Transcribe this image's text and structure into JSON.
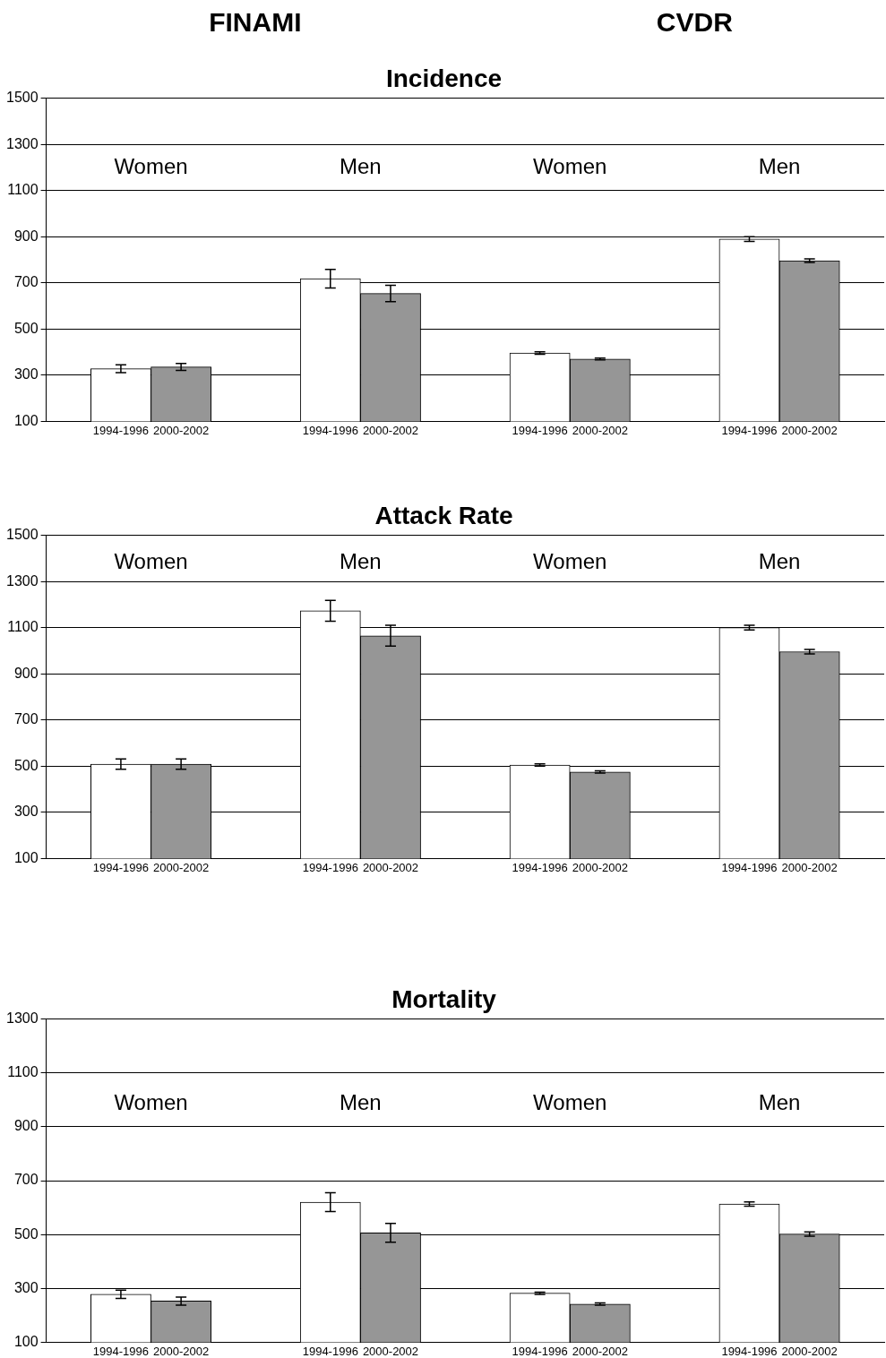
{
  "chart_data": [
    {
      "type": "bar",
      "title": "Incidence",
      "categories": [
        "1994-1996",
        "2000-2002",
        "1994-1996",
        "2000-2002",
        "1994-1996",
        "2000-2002",
        "1994-1996",
        "2000-2002"
      ],
      "values": [
        328,
        336,
        718,
        654,
        396,
        370,
        890,
        796
      ],
      "errors": [
        17,
        15,
        40,
        35,
        5,
        4,
        10,
        8
      ],
      "colors": [
        "#ffffff",
        "#969696",
        "#ffffff",
        "#969696",
        "#ffffff",
        "#969696",
        "#ffffff",
        "#969696"
      ],
      "ylim": [
        100,
        1500
      ],
      "yticks": [
        100,
        300,
        500,
        700,
        900,
        1100,
        1300,
        1500
      ],
      "grid": "y",
      "legend": false,
      "annotations": [
        "FINAMI",
        "CVDR",
        "Women",
        "Men",
        "Women",
        "Men"
      ]
    },
    {
      "type": "bar",
      "title": "Attack Rate",
      "categories": [
        "1994-1996",
        "2000-2002",
        "1994-1996",
        "2000-2002",
        "1994-1996",
        "2000-2002",
        "1994-1996",
        "2000-2002"
      ],
      "values": [
        509,
        509,
        1173,
        1065,
        505,
        475,
        1100,
        996
      ],
      "errors": [
        22,
        22,
        45,
        45,
        5,
        5,
        10,
        10
      ],
      "colors": [
        "#ffffff",
        "#969696",
        "#ffffff",
        "#969696",
        "#ffffff",
        "#969696",
        "#ffffff",
        "#969696"
      ],
      "ylim": [
        100,
        1500
      ],
      "yticks": [
        100,
        300,
        500,
        700,
        900,
        1100,
        1300,
        1500
      ],
      "grid": "y",
      "legend": false,
      "annotations": [
        "Women",
        "Men",
        "Women",
        "Men"
      ]
    },
    {
      "type": "bar",
      "title": "Mortality",
      "categories": [
        "1994-1996",
        "2000-2002",
        "1994-1996",
        "2000-2002",
        "1994-1996",
        "2000-2002",
        "1994-1996",
        "2000-2002"
      ],
      "values": [
        278,
        253,
        620,
        506,
        282,
        242,
        613,
        502
      ],
      "errors": [
        15,
        15,
        35,
        35,
        4,
        4,
        8,
        8
      ],
      "colors": [
        "#ffffff",
        "#969696",
        "#ffffff",
        "#969696",
        "#ffffff",
        "#969696",
        "#ffffff",
        "#969696"
      ],
      "ylim": [
        100,
        1300
      ],
      "yticks": [
        100,
        300,
        500,
        700,
        900,
        1100,
        1300
      ],
      "grid": "y",
      "legend": false,
      "annotations": [
        "Women",
        "Men",
        "Women",
        "Men"
      ]
    }
  ]
}
